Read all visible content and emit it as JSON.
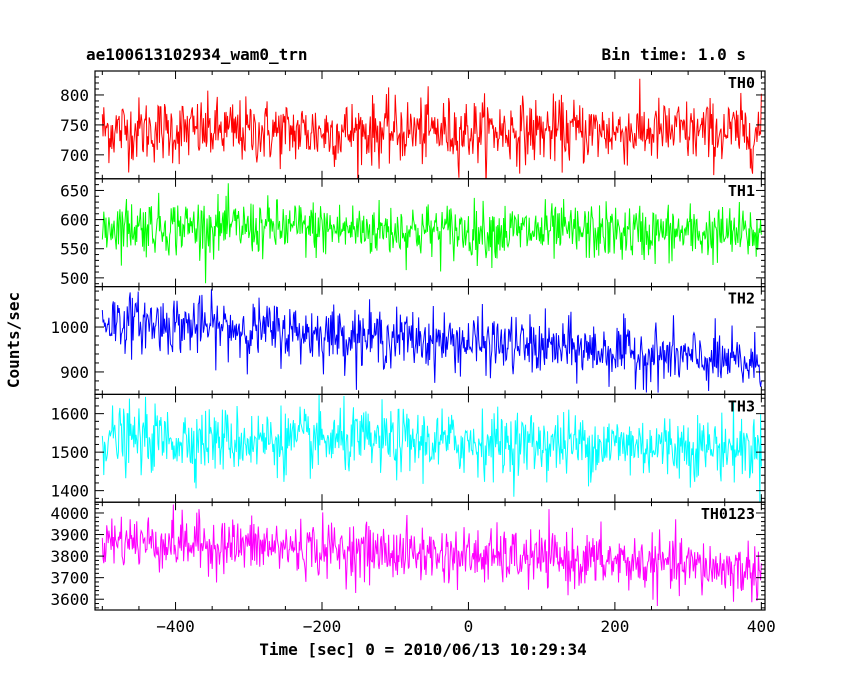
{
  "header": {
    "title": "ae100613102934_wam0_trn",
    "bin_time": "Bin time: 1.0 s"
  },
  "chart_data": {
    "type": "line",
    "ylabel": "Counts/sec",
    "xlabel": "Time [sec] 0 = 2010/06/13 10:29:34",
    "xlim": [
      -510,
      405
    ],
    "x_ticks": [
      -400,
      -200,
      0,
      200,
      400
    ],
    "x_step": 1,
    "panels": [
      {
        "name": "TH0",
        "color": "#ff0000",
        "ylim": [
          660,
          840
        ],
        "y_ticks": [
          700,
          750,
          800
        ],
        "trend": [
          [
            -500,
            742
          ],
          [
            -250,
            738
          ],
          [
            0,
            740
          ],
          [
            200,
            739
          ],
          [
            400,
            737
          ]
        ],
        "noise_sd": 27
      },
      {
        "name": "TH1",
        "color": "#00ff00",
        "ylim": [
          485,
          670
        ],
        "y_ticks": [
          500,
          550,
          600,
          650
        ],
        "trend": [
          [
            -500,
            590
          ],
          [
            -250,
            585
          ],
          [
            0,
            580
          ],
          [
            200,
            578
          ],
          [
            400,
            575
          ]
        ],
        "noise_sd": 24
      },
      {
        "name": "TH2",
        "color": "#0000ff",
        "ylim": [
          850,
          1090
        ],
        "y_ticks": [
          900,
          1000
        ],
        "trend": [
          [
            -500,
            1015
          ],
          [
            -250,
            990
          ],
          [
            0,
            965
          ],
          [
            200,
            945
          ],
          [
            400,
            915
          ]
        ],
        "noise_sd": 32
      },
      {
        "name": "TH3",
        "color": "#00ffff",
        "ylim": [
          1370,
          1650
        ],
        "y_ticks": [
          1400,
          1500,
          1600
        ],
        "trend": [
          [
            -500,
            1535
          ],
          [
            -250,
            1530
          ],
          [
            0,
            1525
          ],
          [
            200,
            1520
          ],
          [
            400,
            1510
          ]
        ],
        "noise_sd": 42
      },
      {
        "name": "TH0123",
        "color": "#ff00ff",
        "ylim": [
          3550,
          4050
        ],
        "y_ticks": [
          3600,
          3700,
          3800,
          3900,
          4000
        ],
        "trend": [
          [
            -500,
            3875
          ],
          [
            -250,
            3840
          ],
          [
            0,
            3800
          ],
          [
            200,
            3775
          ],
          [
            400,
            3730
          ]
        ],
        "noise_sd": 65
      }
    ]
  }
}
